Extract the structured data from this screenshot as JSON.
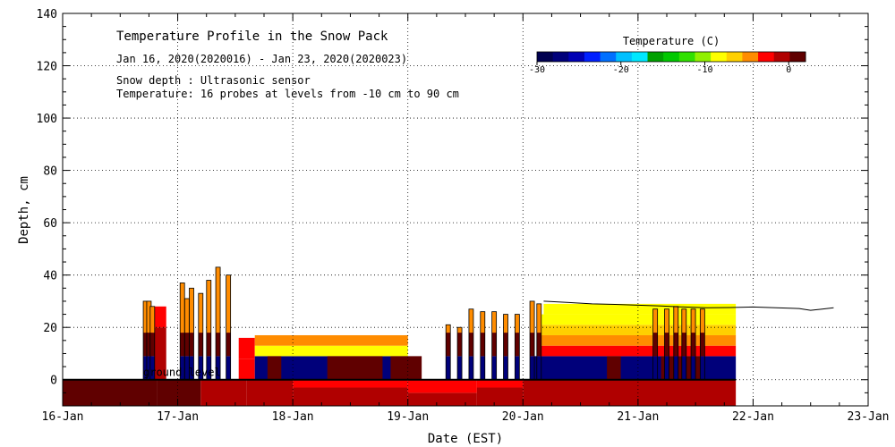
{
  "chart_data": {
    "type": "heatmap",
    "title": "Temperature Profile in the Snow Pack",
    "subtitle": "Jan 16, 2020(2020016) - Jan 23, 2020(2020023)",
    "annotations": [
      "Snow depth : Ultrasonic sensor",
      "Temperature: 16 probes at levels from -10 cm to 90 cm"
    ],
    "ground_label": "ground level",
    "xlabel": "Date (EST)",
    "ylabel": "Depth, cm",
    "x_ticks": [
      "16-Jan",
      "17-Jan",
      "18-Jan",
      "19-Jan",
      "20-Jan",
      "21-Jan",
      "22-Jan",
      "23-Jan"
    ],
    "xlim": [
      0,
      7
    ],
    "y_ticks": [
      0,
      20,
      40,
      60,
      80,
      100,
      120,
      140
    ],
    "ylim": [
      -10,
      140
    ],
    "grid": true,
    "colorbar": {
      "title": "Temperature (C)",
      "placement": "top-right",
      "ticks": [
        -30,
        -20,
        -10,
        0
      ],
      "range": [
        -30,
        2
      ],
      "colors": [
        "#000050",
        "#00007a",
        "#0000b4",
        "#0020ff",
        "#0070ff",
        "#00c0ff",
        "#00e8ff",
        "#00a000",
        "#00c800",
        "#30e000",
        "#90f000",
        "#ffff00",
        "#ffd000",
        "#ff8c00",
        "#ff0000",
        "#b00000",
        "#600000"
      ]
    },
    "snow_depth_series": {
      "name": "Snow depth",
      "x": [
        4.18,
        4.4,
        4.6,
        4.8,
        5.0,
        5.2,
        5.4,
        5.6,
        5.8,
        6.0,
        6.2,
        6.4,
        6.5,
        6.6,
        6.7
      ],
      "y": [
        30,
        29.5,
        29,
        28.8,
        28.5,
        28.2,
        27.8,
        27.5,
        27.6,
        27.8,
        27.5,
        27.2,
        26.5,
        27.0,
        27.5
      ]
    },
    "temperature_blocks": [
      {
        "x": [
          0.0,
          0.82
        ],
        "y": [
          -10,
          0
        ],
        "temp": 0.5
      },
      {
        "x": [
          0.82,
          1.2
        ],
        "y": [
          -10,
          0
        ],
        "temp": 0.2
      },
      {
        "x": [
          1.2,
          1.6
        ],
        "y": [
          -10,
          0
        ],
        "temp": -0.5
      },
      {
        "x": [
          1.6,
          2.0
        ],
        "y": [
          -10,
          0
        ],
        "temp": -1.0
      },
      {
        "x": [
          2.0,
          3.0
        ],
        "y": [
          -10,
          -3
        ],
        "temp": -1.0
      },
      {
        "x": [
          2.0,
          3.0
        ],
        "y": [
          -3,
          0
        ],
        "temp": -2.5
      },
      {
        "x": [
          3.0,
          3.6
        ],
        "y": [
          -10,
          -5
        ],
        "temp": -1.0
      },
      {
        "x": [
          3.0,
          3.6
        ],
        "y": [
          -5,
          0
        ],
        "temp": -3.0
      },
      {
        "x": [
          3.6,
          4.0
        ],
        "y": [
          -10,
          -3
        ],
        "temp": -1.2
      },
      {
        "x": [
          3.6,
          4.0
        ],
        "y": [
          -3,
          0
        ],
        "temp": -2.5
      },
      {
        "x": [
          4.0,
          5.85
        ],
        "y": [
          -10,
          0
        ],
        "temp": -1.0
      },
      {
        "x": [
          0.8,
          0.9
        ],
        "y": [
          0,
          20
        ],
        "temp": -0.5
      },
      {
        "x": [
          0.8,
          0.9
        ],
        "y": [
          20,
          28
        ],
        "temp": -2.5
      },
      {
        "x": [
          1.53,
          1.67
        ],
        "y": [
          0,
          8
        ],
        "temp": -3.0
      },
      {
        "x": [
          1.53,
          1.67
        ],
        "y": [
          8,
          16
        ],
        "temp": -2.0
      },
      {
        "x": [
          1.67,
          3.0
        ],
        "y": [
          0,
          9
        ],
        "temp": -28.0
      },
      {
        "x": [
          1.67,
          3.0
        ],
        "y": [
          9,
          13
        ],
        "temp": -9.0
      },
      {
        "x": [
          1.67,
          3.0
        ],
        "y": [
          13,
          17
        ],
        "temp": -5.0
      },
      {
        "x": [
          4.1,
          5.85
        ],
        "y": [
          0,
          9
        ],
        "temp": -28.0
      },
      {
        "x": [
          4.15,
          5.85
        ],
        "y": [
          9,
          13
        ],
        "temp": -3.0
      },
      {
        "x": [
          4.15,
          5.85
        ],
        "y": [
          13,
          17
        ],
        "temp": -4.5
      },
      {
        "x": [
          4.15,
          5.85
        ],
        "y": [
          17,
          21
        ],
        "temp": -6.0
      },
      {
        "x": [
          4.15,
          5.85
        ],
        "y": [
          21,
          25
        ],
        "temp": -8.0
      },
      {
        "x": [
          4.18,
          5.85
        ],
        "y": [
          25,
          29
        ],
        "temp": -9.0
      }
    ],
    "warm_spots": [
      {
        "x": [
          1.78,
          1.9
        ],
        "y": [
          0,
          9
        ],
        "temp": 1.0
      },
      {
        "x": [
          2.3,
          2.78
        ],
        "y": [
          0,
          9
        ],
        "temp": 2.0
      },
      {
        "x": [
          2.85,
          3.12
        ],
        "y": [
          0,
          9
        ],
        "temp": 2.0
      },
      {
        "x": [
          4.73,
          4.85
        ],
        "y": [
          0,
          9
        ],
        "temp": 1.0
      },
      {
        "x": [
          5.2,
          5.55
        ],
        "y": [
          0,
          9
        ],
        "temp": 2.0
      }
    ],
    "spikes": [
      {
        "x": 0.72,
        "top": 30
      },
      {
        "x": 0.75,
        "top": 30
      },
      {
        "x": 0.78,
        "top": 28
      },
      {
        "x": 1.04,
        "top": 37
      },
      {
        "x": 1.08,
        "top": 31
      },
      {
        "x": 1.12,
        "top": 35
      },
      {
        "x": 1.2,
        "top": 33
      },
      {
        "x": 1.27,
        "top": 38
      },
      {
        "x": 1.35,
        "top": 43
      },
      {
        "x": 1.44,
        "top": 40
      },
      {
        "x": 3.35,
        "top": 21
      },
      {
        "x": 3.45,
        "top": 20
      },
      {
        "x": 3.55,
        "top": 27
      },
      {
        "x": 3.65,
        "top": 26
      },
      {
        "x": 3.75,
        "top": 26
      },
      {
        "x": 3.85,
        "top": 25
      },
      {
        "x": 3.95,
        "top": 25
      },
      {
        "x": 4.08,
        "top": 30
      },
      {
        "x": 4.14,
        "top": 29
      },
      {
        "x": 5.15,
        "top": 27
      },
      {
        "x": 5.25,
        "top": 27
      },
      {
        "x": 5.33,
        "top": 28
      },
      {
        "x": 5.4,
        "top": 27
      },
      {
        "x": 5.48,
        "top": 27
      },
      {
        "x": 5.56,
        "top": 27
      }
    ]
  }
}
